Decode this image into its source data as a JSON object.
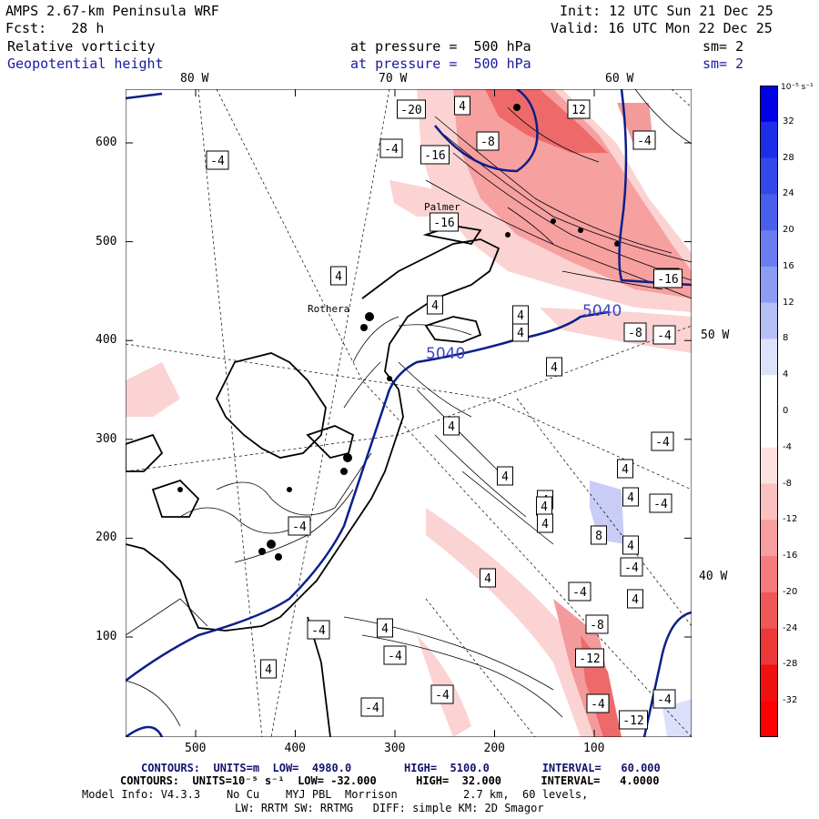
{
  "header": {
    "model": "AMPS 2.67-km Peninsula WRF",
    "init": "Init: 12 UTC Sun 21 Dec 25",
    "fcst": "Fcst:   28 h",
    "valid": "Valid: 16 UTC Mon 22 Dec 25",
    "field1": {
      "name": "Relative vorticity",
      "level": "at pressure =  500 hPa",
      "smooth": "sm= 2"
    },
    "field2": {
      "name": "Geopotential height",
      "level": "at pressure =  500 hPa",
      "smooth": "sm= 2"
    }
  },
  "colors": {
    "navy": "#1a1aa0",
    "contour_blue": "#0b1f8a",
    "neg": "#f04040",
    "pos": "#3a46e0"
  },
  "longitudes": {
    "w80": "80 W",
    "w70": "70 W",
    "w60": "60 W",
    "w50": "50 W",
    "w40": "40 W"
  },
  "places": {
    "palmer": "Palmer",
    "rothera": "Rothera"
  },
  "chart_data": {
    "type": "map",
    "x_axis": {
      "ticks": [
        "500",
        "400",
        "300",
        "200",
        "100"
      ],
      "values": [
        500,
        400,
        300,
        200,
        100
      ]
    },
    "y_axis": {
      "ticks": [
        "100",
        "200",
        "300",
        "400",
        "500",
        "600"
      ],
      "values": [
        100,
        200,
        300,
        400,
        500,
        600
      ]
    },
    "colorbar": {
      "units": "10⁻⁵ s⁻¹",
      "ticks": [
        "32",
        "28",
        "24",
        "20",
        "16",
        "12",
        "8",
        "4",
        "0",
        "-4",
        "-8",
        "-12",
        "-16",
        "-20",
        "-24",
        "-28",
        "-32"
      ],
      "range": [
        -32,
        32
      ]
    },
    "height_contour_labels": [
      "5040",
      "5040"
    ],
    "vorticity_labels": [
      "-20",
      "4",
      "-16",
      "12",
      "-4",
      "-4",
      "-4",
      "-8",
      "-16",
      "-8",
      "4",
      "-16",
      "4",
      "4",
      "-8",
      "-4",
      "4",
      "4",
      "4",
      "4",
      "4",
      "-4",
      "4",
      "4",
      "4",
      "-4",
      "4",
      "8",
      "4",
      "-4",
      "-4",
      "4",
      "-4",
      "-4",
      "4",
      "-4",
      "-8",
      "-4",
      "-12",
      "4",
      "-4",
      "-4",
      "-12",
      "4",
      "-4"
    ]
  },
  "footer": {
    "line1": "CONTOURS:  UNITS=m  LOW=  4980.0        HIGH=  5100.0        INTERVAL=   60.000",
    "line2": "CONTOURS:  UNITS=10⁻⁵ s⁻¹  LOW= -32.000      HIGH=  32.000      INTERVAL=   4.0000",
    "line3": "Model Info: V4.3.3    No Cu    MYJ PBL  Morrison          2.7 km,  60 levels,",
    "line4": "LW: RRTM SW: RRTMG   DIFF: simple KM: 2D Smagor"
  }
}
